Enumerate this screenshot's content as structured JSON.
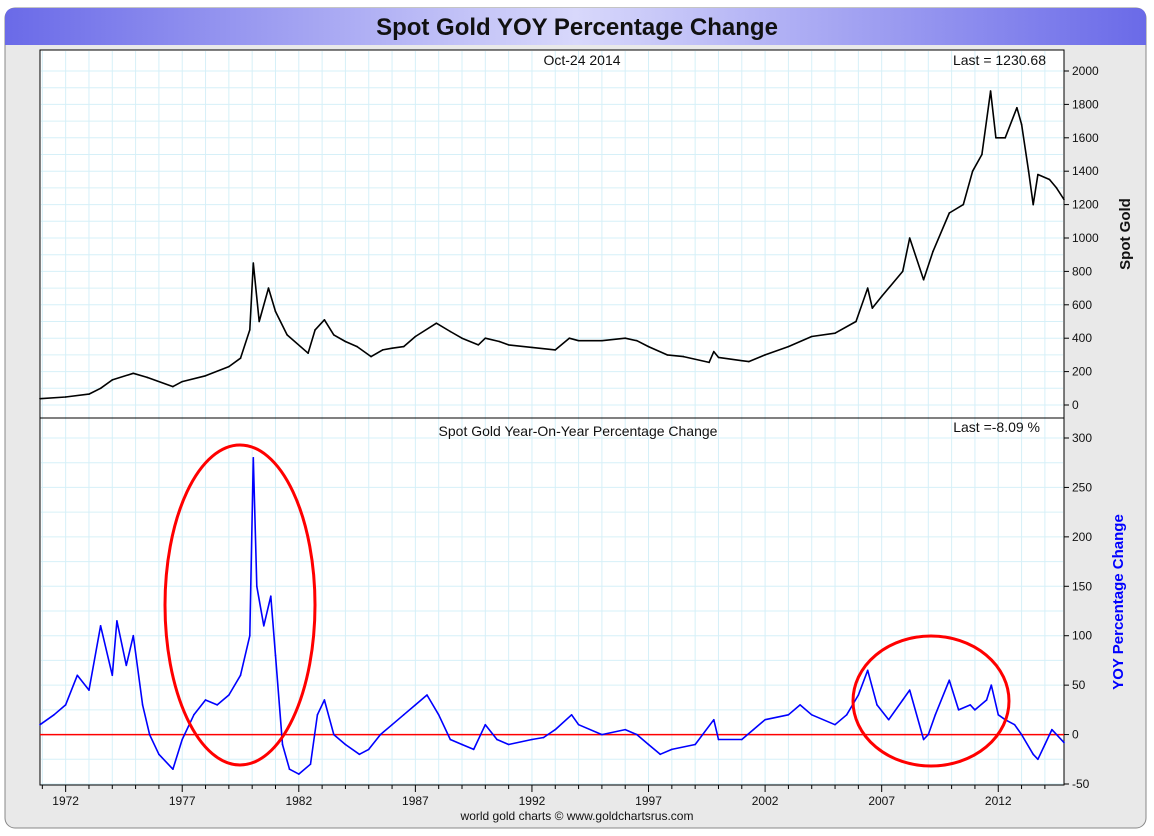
{
  "chart_data": [
    {
      "type": "line",
      "title": "Spot Gold YOY Percentage Change",
      "subtitle": "Oct-24  2014",
      "last_label": "Last = 1230.68",
      "ylabel": "Spot Gold",
      "ylim": [
        0,
        2000
      ],
      "yticks": [
        0,
        200,
        400,
        600,
        800,
        1000,
        1200,
        1400,
        1600,
        1800,
        2000
      ],
      "xlim": [
        1970.9,
        2014.82
      ],
      "xticks": [
        1972,
        1977,
        1982,
        1987,
        1992,
        1997,
        2002,
        2007,
        2012
      ],
      "grid": true,
      "color": "#000000",
      "x": [
        1970.9,
        1972,
        1973,
        1973.5,
        1974,
        1974.9,
        1975.5,
        1976.6,
        1977,
        1978,
        1979,
        1979.5,
        1979.9,
        1980.05,
        1980.3,
        1980.7,
        1981,
        1981.5,
        1982.4,
        1982.7,
        1983.1,
        1983.5,
        1984,
        1984.5,
        1985.1,
        1985.6,
        1986,
        1986.5,
        1987,
        1987.9,
        1988.5,
        1989,
        1989.7,
        1990,
        1990.6,
        1991,
        1992,
        1993,
        1993.6,
        1994,
        1995,
        1996,
        1996.5,
        1997,
        1997.8,
        1998.5,
        1999.6,
        1999.8,
        2000,
        2001,
        2001.3,
        2002,
        2003,
        2004,
        2005,
        2005.9,
        2006.4,
        2006.6,
        2007,
        2007.9,
        2008.2,
        2008.8,
        2009.2,
        2009.9,
        2010.5,
        2010.9,
        2011.3,
        2011.67,
        2011.9,
        2012.3,
        2012.8,
        2013,
        2013.3,
        2013.5,
        2013.7,
        2014.2,
        2014.5,
        2014.82
      ],
      "values": [
        38,
        48,
        65,
        100,
        150,
        190,
        165,
        110,
        140,
        175,
        230,
        280,
        450,
        850,
        500,
        700,
        560,
        420,
        310,
        450,
        510,
        420,
        380,
        350,
        290,
        330,
        340,
        350,
        410,
        490,
        440,
        400,
        360,
        400,
        380,
        360,
        345,
        330,
        400,
        385,
        385,
        400,
        385,
        350,
        300,
        290,
        255,
        320,
        285,
        265,
        260,
        300,
        350,
        410,
        430,
        500,
        700,
        580,
        650,
        800,
        1000,
        750,
        920,
        1150,
        1200,
        1400,
        1500,
        1880,
        1600,
        1600,
        1780,
        1680,
        1400,
        1200,
        1380,
        1350,
        1300,
        1230.68
      ]
    },
    {
      "type": "line",
      "title": "Spot Gold Year-On-Year Percentage Change",
      "last_label": "Last =-8.09 %",
      "ylabel": "YOY Percentage Change",
      "ylim": [
        -50,
        300
      ],
      "yticks": [
        -50,
        0,
        50,
        100,
        150,
        200,
        250,
        300
      ],
      "xlim": [
        1970.9,
        2014.82
      ],
      "xticks": [
        1972,
        1977,
        1982,
        1987,
        1992,
        1997,
        2002,
        2007,
        2012
      ],
      "grid": true,
      "color": "#0000ff",
      "reference_line": {
        "y": 0,
        "color": "#ff0000"
      },
      "x": [
        1970.9,
        1971.5,
        1972,
        1972.5,
        1973,
        1973.5,
        1974,
        1974.2,
        1974.6,
        1974.9,
        1975.3,
        1975.6,
        1976,
        1976.6,
        1977,
        1977.5,
        1978,
        1978.5,
        1979,
        1979.5,
        1979.9,
        1980.05,
        1980.2,
        1980.5,
        1980.8,
        1981,
        1981.3,
        1981.6,
        1982,
        1982.5,
        1982.8,
        1983.1,
        1983.5,
        1984,
        1984.6,
        1985,
        1985.5,
        1986,
        1986.5,
        1987,
        1987.5,
        1988,
        1988.5,
        1989,
        1989.5,
        1990,
        1990.5,
        1991,
        1992,
        1992.5,
        1993,
        1993.7,
        1994,
        1995,
        1996,
        1996.5,
        1997,
        1997.5,
        1998,
        1999,
        1999.8,
        2000,
        2001,
        2001.5,
        2002,
        2003,
        2003.5,
        2004,
        2005,
        2005.5,
        2006,
        2006.4,
        2006.8,
        2007.3,
        2007.9,
        2008.2,
        2008.8,
        2009,
        2009.3,
        2009.9,
        2010.3,
        2010.8,
        2011,
        2011.5,
        2011.7,
        2012,
        2012.3,
        2012.7,
        2013,
        2013.5,
        2013.7,
        2014,
        2014.3,
        2014.82
      ],
      "values": [
        10,
        20,
        30,
        60,
        45,
        110,
        60,
        115,
        70,
        100,
        30,
        0,
        -20,
        -35,
        -5,
        20,
        35,
        30,
        40,
        60,
        100,
        280,
        150,
        110,
        140,
        80,
        -10,
        -35,
        -40,
        -30,
        20,
        35,
        0,
        -10,
        -20,
        -15,
        0,
        10,
        20,
        30,
        40,
        20,
        -5,
        -10,
        -15,
        10,
        -5,
        -10,
        -5,
        -3,
        5,
        20,
        10,
        0,
        5,
        0,
        -10,
        -20,
        -15,
        -10,
        15,
        -5,
        -5,
        5,
        15,
        20,
        30,
        20,
        10,
        20,
        40,
        65,
        30,
        15,
        35,
        45,
        -5,
        0,
        20,
        55,
        25,
        30,
        25,
        35,
        50,
        20,
        15,
        10,
        0,
        -20,
        -25,
        -10,
        5,
        -8.09
      ]
    }
  ],
  "footer": "world gold charts © www.goldchartsrus.com",
  "annotations": {
    "ellipse_color": "#ff0000"
  },
  "colors": {
    "title_bar": "#7b7bf0",
    "frame": "#e8e8e8",
    "grid": "#d6f0f8"
  }
}
